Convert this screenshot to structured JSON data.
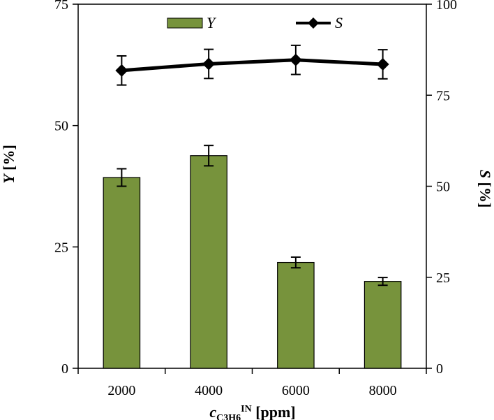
{
  "chart_data": {
    "type": "bar",
    "categories": [
      "2000",
      "4000",
      "6000",
      "8000"
    ],
    "series": [
      {
        "name": "Y",
        "type": "bar",
        "axis": "left",
        "values": [
          39.3,
          43.8,
          21.8,
          17.9
        ],
        "error": [
          1.8,
          2.1,
          1.1,
          0.8
        ],
        "color": "#77933c"
      },
      {
        "name": "S",
        "type": "line",
        "axis": "right",
        "values": [
          81.8,
          83.6,
          84.7,
          83.5
        ],
        "error": [
          4.0,
          4.0,
          4.0,
          4.0
        ],
        "color": "#000000"
      }
    ],
    "xlabel": {
      "var": "c",
      "sub": "C3H6",
      "sup": "IN",
      "unit": "[ppm]"
    },
    "ylabel_left": {
      "var": "Y",
      "unit": "[%]"
    },
    "ylabel_right": {
      "var": "S",
      "unit": "[%]"
    },
    "ylim_left": [
      0,
      75
    ],
    "yticks_left": [
      "0",
      "25",
      "50",
      "75"
    ],
    "ylim_right": [
      0,
      100
    ],
    "yticks_right": [
      "0",
      "25",
      "50",
      "75",
      "100"
    ],
    "legend": "top-center",
    "grid": false
  }
}
